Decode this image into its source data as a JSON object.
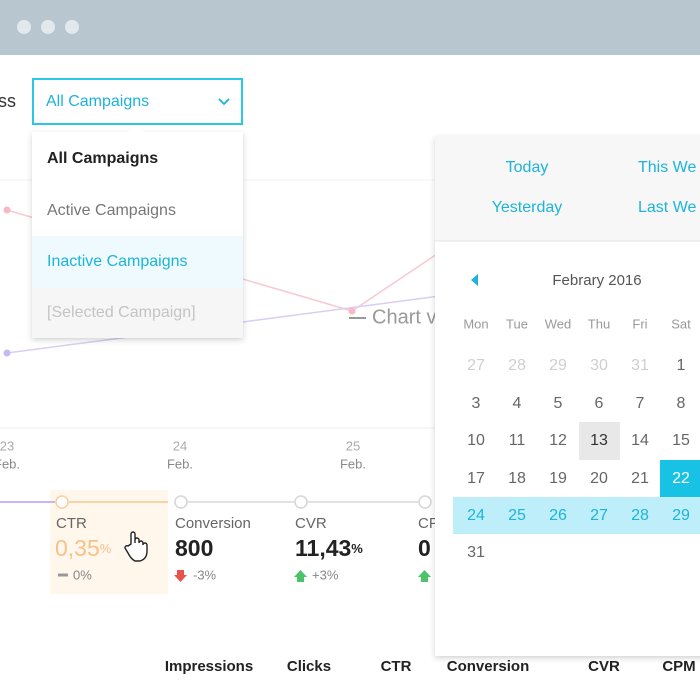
{
  "filter": {
    "label_fragment": "ss",
    "selected": "All Campaigns",
    "options": [
      "All Campaigns",
      "Active Campaigns",
      "Inactive Campaigns",
      "[Selected Campaign]"
    ]
  },
  "chart": {
    "legend_fragment": "Chart v",
    "x_labels": [
      {
        "day": "23",
        "month": "Feb."
      },
      {
        "day": "24",
        "month": "Feb."
      },
      {
        "day": "25",
        "month": "Feb."
      }
    ]
  },
  "metrics": [
    {
      "name": "CTR",
      "value": "0,35",
      "unit": "%",
      "change": "0%"
    },
    {
      "name": "Conversion",
      "value": "800",
      "change": "-3%"
    },
    {
      "name": "CVR",
      "value": "11,43",
      "unit": "%",
      "change": "+3%"
    },
    {
      "name": "CF",
      "value": "0"
    }
  ],
  "date_picker": {
    "presets": [
      "Today",
      "This We",
      "Yesterday",
      "Last We"
    ],
    "month": "Febrary 2016",
    "weekdays": [
      "Mon",
      "Tue",
      "Wed",
      "Thu",
      "Fri",
      "Sat"
    ],
    "weeks": [
      [
        27,
        28,
        29,
        30,
        31,
        1
      ],
      [
        3,
        4,
        5,
        6,
        7,
        8
      ],
      [
        10,
        11,
        12,
        13,
        14,
        15
      ],
      [
        17,
        18,
        19,
        20,
        21,
        22
      ],
      [
        24,
        25,
        26,
        27,
        28,
        29
      ],
      [
        31
      ]
    ]
  },
  "table": {
    "columns": [
      "Impressions",
      "Clicks",
      "CTR",
      "Conversion",
      "CVR",
      "CPM"
    ]
  }
}
